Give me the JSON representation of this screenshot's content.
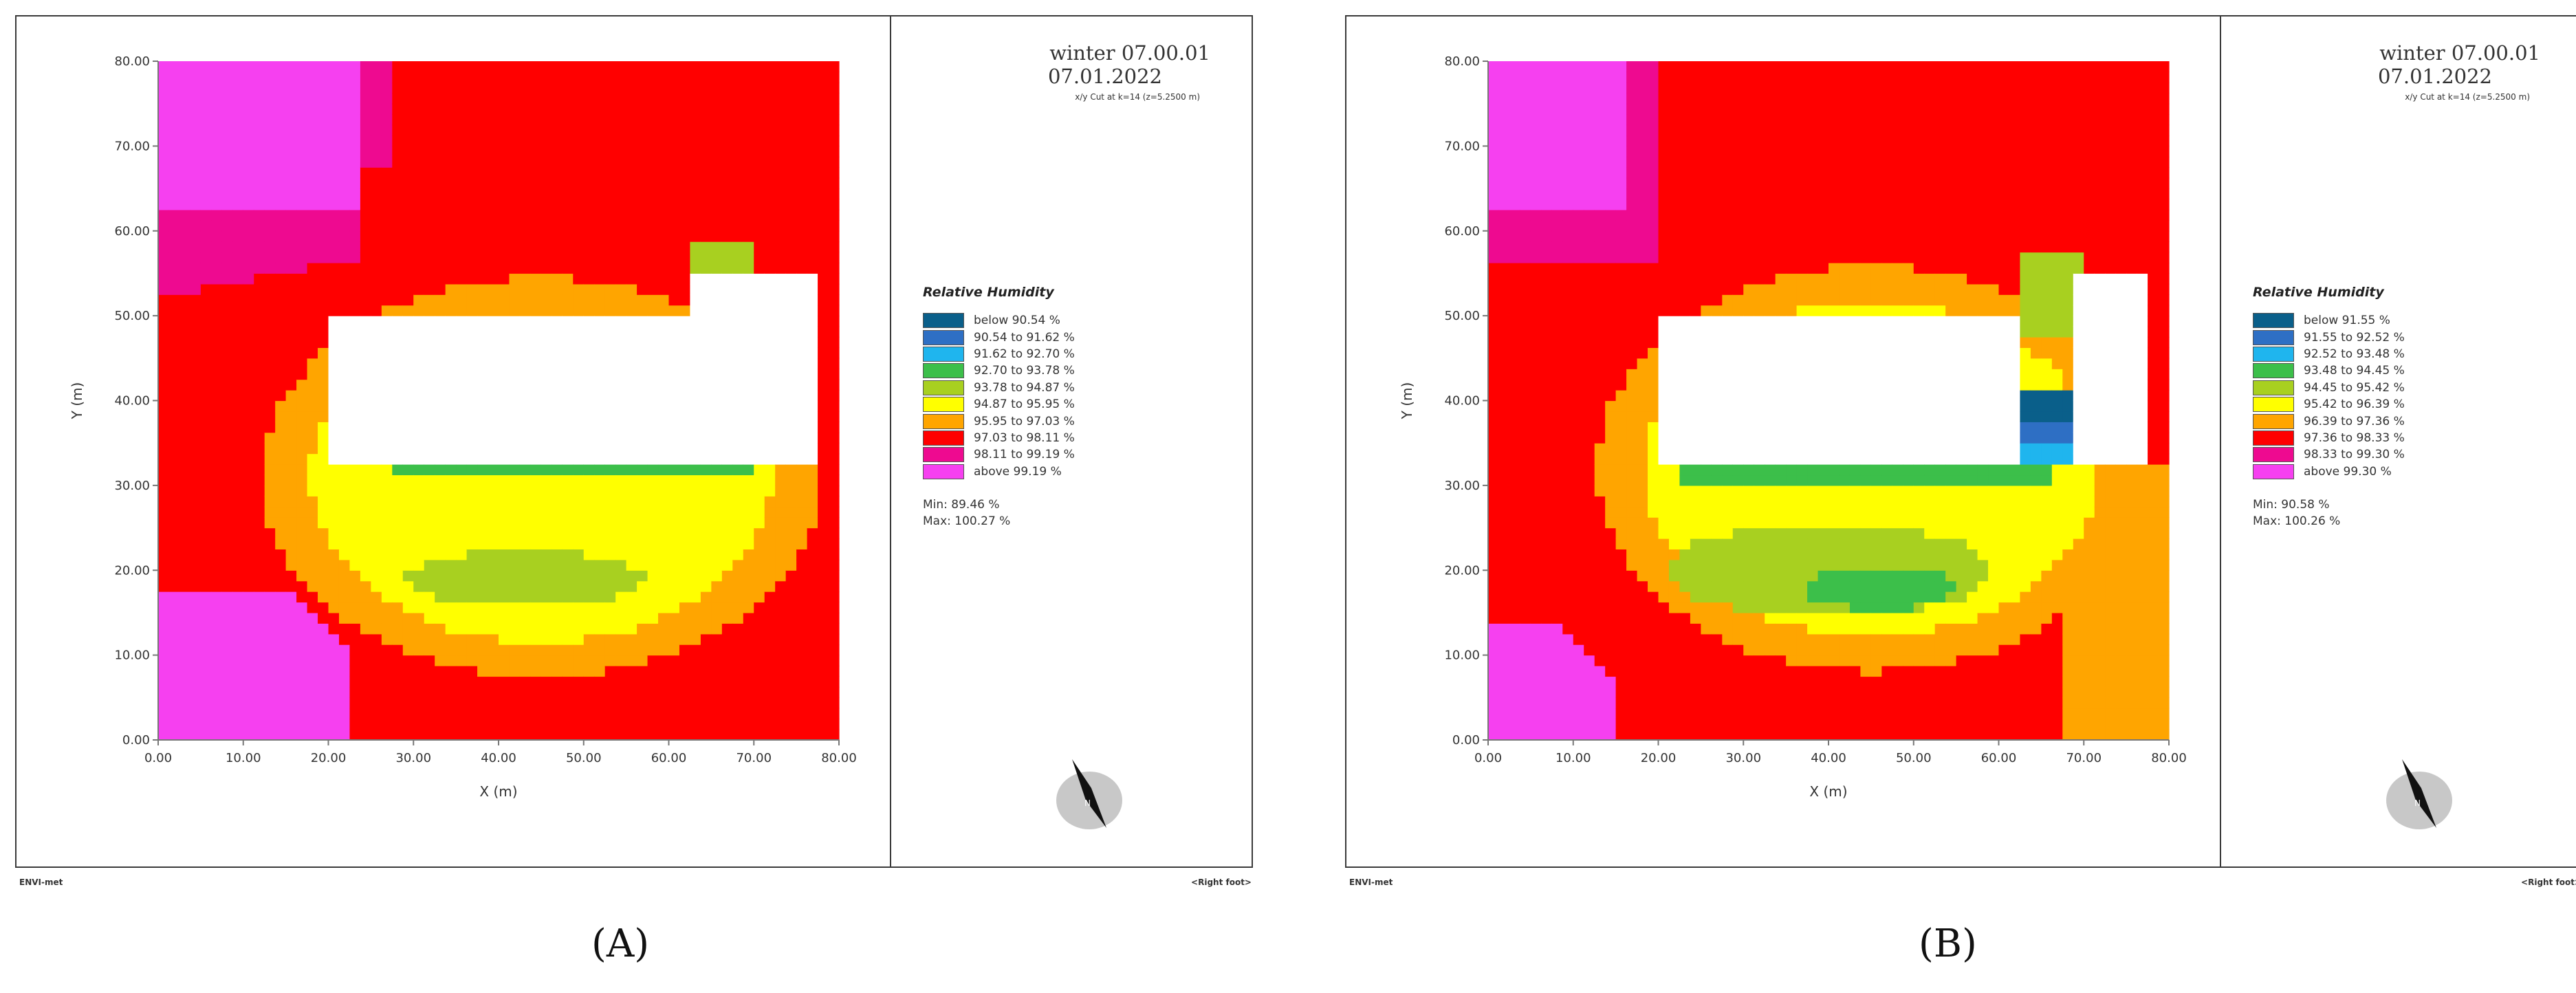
{
  "chart_data": [
    {
      "type": "heatmap",
      "panel": "A",
      "scenario": "winter 07.00.01",
      "date": "07.01.2022",
      "cut_label": "x/y Cut at k=14 (z=5.2500 m)",
      "xlabel": "X (m)",
      "ylabel": "Y (m)",
      "xlim": [
        0,
        80
      ],
      "ylim": [
        0,
        80
      ],
      "x_ticks": [
        "0.00",
        "10.00",
        "20.00",
        "30.00",
        "40.00",
        "50.00",
        "60.00",
        "70.00",
        "80.00"
      ],
      "y_ticks": [
        "0.00",
        "10.00",
        "20.00",
        "30.00",
        "40.00",
        "50.00",
        "60.00",
        "70.00",
        "80.00"
      ],
      "legend_title": "Relative Humidity",
      "legend": [
        {
          "label": "below 90.54 %",
          "color": "#0a5f8a"
        },
        {
          "label": "90.54 to 91.62 %",
          "color": "#2e6fc4"
        },
        {
          "label": "91.62 to 92.70 %",
          "color": "#1fb5ee"
        },
        {
          "label": "92.70 to 93.78 %",
          "color": "#3cbf4a"
        },
        {
          "label": "93.78 to 94.87 %",
          "color": "#a8d020"
        },
        {
          "label": "94.87 to 95.95 %",
          "color": "#ffff00"
        },
        {
          "label": "95.95 to 97.03 %",
          "color": "#ffa500"
        },
        {
          "label": "97.03 to 98.11 %",
          "color": "#ff0000"
        },
        {
          "label": "98.11 to 99.19 %",
          "color": "#ee0a90"
        },
        {
          "label": "above 99.19 %",
          "color": "#f640f0"
        }
      ],
      "min_label": "Min: 89.46 %",
      "max_label": "Max: 100.27 %",
      "footer_left": "ENVI-met",
      "footer_right": "<Right foot>"
    },
    {
      "type": "heatmap",
      "panel": "B",
      "scenario": "winter 07.00.01",
      "date": "07.01.2022",
      "cut_label": "x/y Cut at k=14 (z=5.2500 m)",
      "xlabel": "X (m)",
      "ylabel": "Y (m)",
      "xlim": [
        0,
        80
      ],
      "ylim": [
        0,
        80
      ],
      "x_ticks": [
        "0.00",
        "10.00",
        "20.00",
        "30.00",
        "40.00",
        "50.00",
        "60.00",
        "70.00",
        "80.00"
      ],
      "y_ticks": [
        "0.00",
        "10.00",
        "20.00",
        "30.00",
        "40.00",
        "50.00",
        "60.00",
        "70.00",
        "80.00"
      ],
      "legend_title": "Relative Humidity",
      "legend": [
        {
          "label": "below 91.55 %",
          "color": "#0a5f8a"
        },
        {
          "label": "91.55 to 92.52 %",
          "color": "#2e6fc4"
        },
        {
          "label": "92.52 to 93.48 %",
          "color": "#1fb5ee"
        },
        {
          "label": "93.48 to 94.45 %",
          "color": "#3cbf4a"
        },
        {
          "label": "94.45 to 95.42 %",
          "color": "#a8d020"
        },
        {
          "label": "95.42 to 96.39 %",
          "color": "#ffff00"
        },
        {
          "label": "96.39 to 97.36 %",
          "color": "#ffa500"
        },
        {
          "label": "97.36 to 98.33 %",
          "color": "#ff0000"
        },
        {
          "label": "98.33 to 99.30 %",
          "color": "#ee0a90"
        },
        {
          "label": "above 99.30 %",
          "color": "#f640f0"
        }
      ],
      "min_label": "Min: 90.58 %",
      "max_label": "Max: 100.26 %",
      "footer_left": "ENVI-met",
      "footer_right": "<Right foot>"
    }
  ],
  "captions": [
    "(A)",
    "(B)"
  ]
}
